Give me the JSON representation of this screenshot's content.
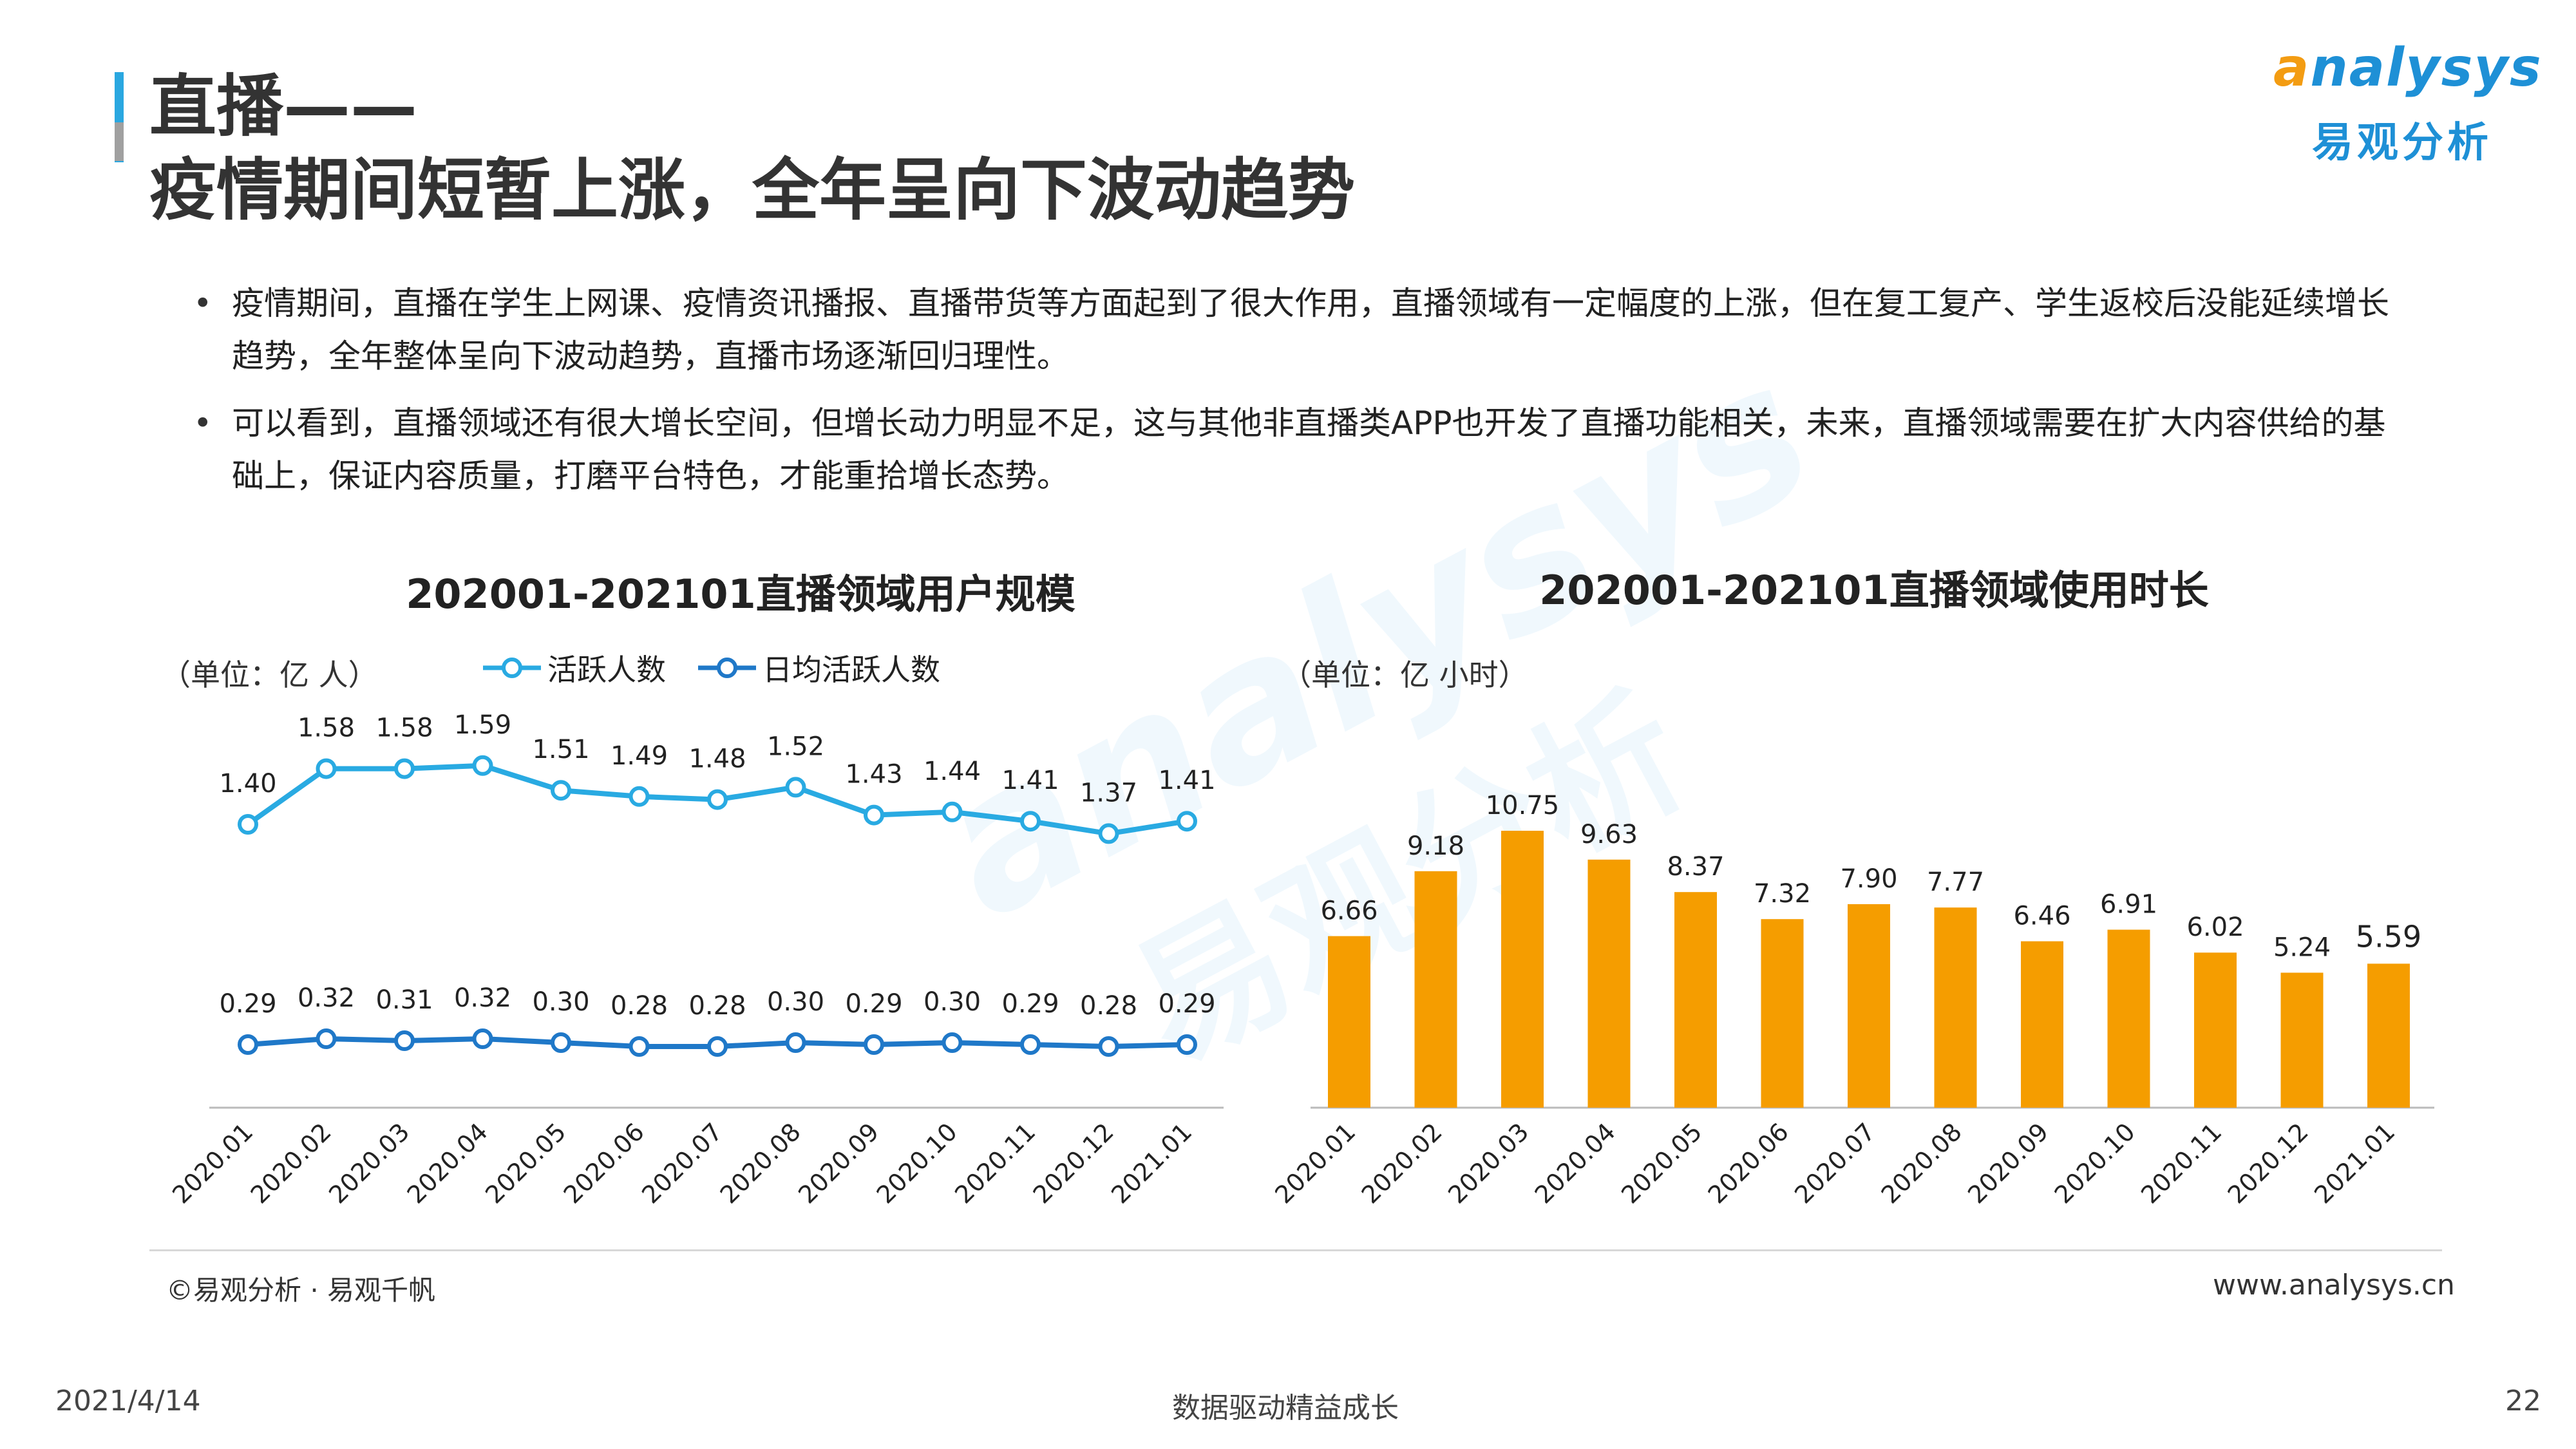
{
  "header": {
    "title_line1": "直播——",
    "title_line2": "疫情期间短暂上涨，全年呈向下波动趋势",
    "logo_en": "nalysys",
    "logo_cn": "易观分析"
  },
  "bullets": [
    "疫情期间，直播在学生上网课、疫情资讯播报、直播带货等方面起到了很大作用，直播领域有一定幅度的上涨，但在复工复产、学生返校后没能延续增长趋势，全年整体呈向下波动趋势，直播市场逐渐回归理性。",
    "可以看到，直播领域还有很大增长空间，但增长动力明显不足，这与其他非直播类APP也开发了直播功能相关，未来，直播领域需要在扩大内容供给的基础上，保证内容质量，打磨平台特色，才能重拾增长态势。"
  ],
  "bullet_marker": "•",
  "footer": {
    "source": "©易观分析 · 易观千帆",
    "website": "www.analysys.cn",
    "date": "2021/4/14",
    "slogan": "数据驱动精益成长",
    "page": "22"
  },
  "colors": {
    "line_active": "#29aae2",
    "line_daily": "#1f78c8",
    "bar": "#f59d00",
    "accent": "#2aa7e0"
  },
  "chart_data": [
    {
      "type": "line",
      "title": "202001-202101直播领域用户规模",
      "unit": "（单位：亿 人）",
      "categories": [
        "2020.01",
        "2020.02",
        "2020.03",
        "2020.04",
        "2020.05",
        "2020.06",
        "2020.07",
        "2020.08",
        "2020.09",
        "2020.10",
        "2020.11",
        "2020.12",
        "2021.01"
      ],
      "series": [
        {
          "name": "活跃人数",
          "values": [
            1.4,
            1.58,
            1.58,
            1.59,
            1.51,
            1.49,
            1.48,
            1.52,
            1.43,
            1.44,
            1.41,
            1.37,
            1.41
          ]
        },
        {
          "name": "日均活跃人数",
          "values": [
            0.29,
            0.32,
            0.31,
            0.32,
            0.3,
            0.28,
            0.28,
            0.3,
            0.29,
            0.3,
            0.29,
            0.28,
            0.29
          ]
        }
      ],
      "legend": "top",
      "grid": false
    },
    {
      "type": "bar",
      "title": "202001-202101直播领域使用时长",
      "unit": "（单位：亿 小时）",
      "categories": [
        "2020.01",
        "2020.02",
        "2020.03",
        "2020.04",
        "2020.05",
        "2020.06",
        "2020.07",
        "2020.08",
        "2020.09",
        "2020.10",
        "2020.11",
        "2020.12",
        "2021.01"
      ],
      "values": [
        6.66,
        9.18,
        10.75,
        9.63,
        8.37,
        7.32,
        7.9,
        7.77,
        6.46,
        6.91,
        6.02,
        5.24,
        5.59
      ],
      "ylim": [
        0,
        11.5
      ],
      "grid": false
    }
  ]
}
